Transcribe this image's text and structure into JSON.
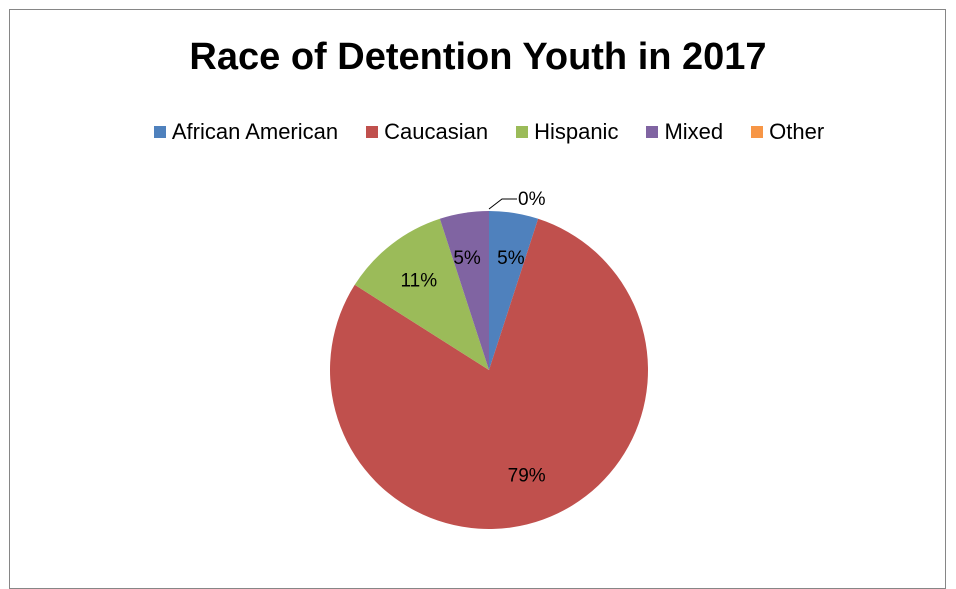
{
  "chart_data": {
    "type": "pie",
    "title": "Race of Detention Youth in 2017",
    "legend_position": "top",
    "slices": [
      {
        "name": "African American",
        "value": 5,
        "label": "5%",
        "color": "#4F81BD"
      },
      {
        "name": "Caucasian",
        "value": 79,
        "label": "79%",
        "color": "#C0504D"
      },
      {
        "name": "Hispanic",
        "value": 11,
        "label": "11%",
        "color": "#9BBB59"
      },
      {
        "name": "Mixed",
        "value": 5,
        "label": "5%",
        "color": "#8064A2"
      },
      {
        "name": "Other",
        "value": 0,
        "label": "0%",
        "color": "#F79646"
      }
    ]
  }
}
